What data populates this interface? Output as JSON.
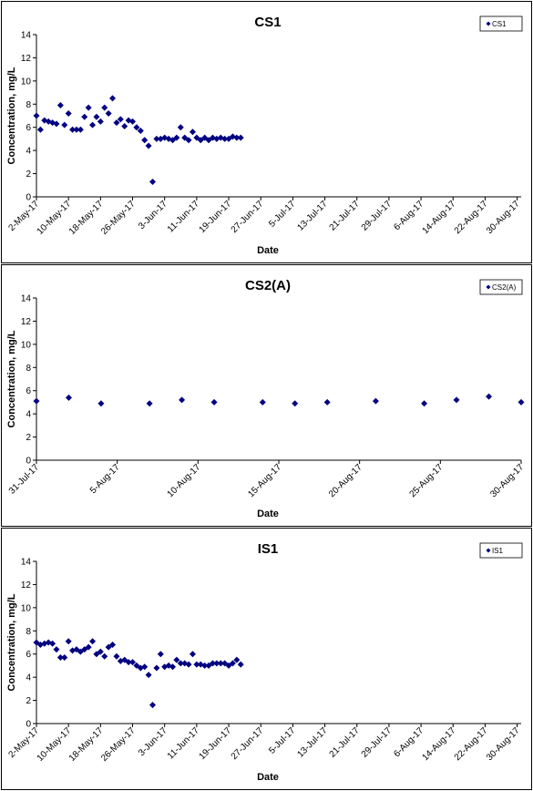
{
  "chart_data": [
    {
      "type": "scatter",
      "title": "CS1",
      "xlabel": "Date",
      "ylabel": "Concentration, mg/L",
      "ylim": [
        0,
        14
      ],
      "yticks": [
        "0",
        "2",
        "4",
        "6",
        "8",
        "10",
        "12",
        "14"
      ],
      "xlim": [
        "2017-05-02",
        "2017-08-31"
      ],
      "xticks": [
        "2-May-17",
        "10-May-17",
        "18-May-17",
        "26-May-17",
        "3-Jun-17",
        "11-Jun-17",
        "19-Jun-17",
        "27-Jun-17",
        "5-Jul-17",
        "13-Jul-17",
        "21-Jul-17",
        "29-Jul-17",
        "6-Aug-17",
        "14-Aug-17",
        "22-Aug-17",
        "30-Aug-17"
      ],
      "legend": "top-right",
      "series": [
        {
          "name": "CS1",
          "color": "#000080",
          "points": [
            [
              "2017-05-02",
              7.0
            ],
            [
              "2017-05-03",
              5.8
            ],
            [
              "2017-05-04",
              6.6
            ],
            [
              "2017-05-05",
              6.5
            ],
            [
              "2017-05-06",
              6.4
            ],
            [
              "2017-05-07",
              6.3
            ],
            [
              "2017-05-08",
              7.9
            ],
            [
              "2017-05-09",
              6.2
            ],
            [
              "2017-05-10",
              7.2
            ],
            [
              "2017-05-11",
              5.8
            ],
            [
              "2017-05-12",
              5.8
            ],
            [
              "2017-05-13",
              5.8
            ],
            [
              "2017-05-14",
              6.9
            ],
            [
              "2017-05-15",
              7.7
            ],
            [
              "2017-05-16",
              6.2
            ],
            [
              "2017-05-17",
              6.9
            ],
            [
              "2017-05-18",
              6.5
            ],
            [
              "2017-05-19",
              7.7
            ],
            [
              "2017-05-20",
              7.2
            ],
            [
              "2017-05-21",
              8.5
            ],
            [
              "2017-05-22",
              6.4
            ],
            [
              "2017-05-23",
              6.7
            ],
            [
              "2017-05-24",
              6.1
            ],
            [
              "2017-05-25",
              6.6
            ],
            [
              "2017-05-26",
              6.5
            ],
            [
              "2017-05-27",
              6.0
            ],
            [
              "2017-05-28",
              5.7
            ],
            [
              "2017-05-29",
              4.9
            ],
            [
              "2017-05-30",
              4.4
            ],
            [
              "2017-05-31",
              1.3
            ],
            [
              "2017-06-01",
              5.0
            ],
            [
              "2017-06-02",
              5.0
            ],
            [
              "2017-06-03",
              5.1
            ],
            [
              "2017-06-04",
              5.0
            ],
            [
              "2017-06-05",
              4.9
            ],
            [
              "2017-06-06",
              5.1
            ],
            [
              "2017-06-07",
              6.0
            ],
            [
              "2017-06-08",
              5.1
            ],
            [
              "2017-06-09",
              4.9
            ],
            [
              "2017-06-10",
              5.6
            ],
            [
              "2017-06-11",
              5.1
            ],
            [
              "2017-06-12",
              4.9
            ],
            [
              "2017-06-13",
              5.1
            ],
            [
              "2017-06-14",
              4.9
            ],
            [
              "2017-06-15",
              5.1
            ],
            [
              "2017-06-16",
              5.0
            ],
            [
              "2017-06-17",
              5.1
            ],
            [
              "2017-06-18",
              5.0
            ],
            [
              "2017-06-19",
              5.0
            ],
            [
              "2017-06-20",
              5.2
            ],
            [
              "2017-06-21",
              5.1
            ],
            [
              "2017-06-22",
              5.1
            ]
          ]
        }
      ]
    },
    {
      "type": "scatter",
      "title": "CS2(A)",
      "xlabel": "Date",
      "ylabel": "Concentration, mg/L",
      "ylim": [
        0,
        14
      ],
      "yticks": [
        "0",
        "2",
        "4",
        "6",
        "8",
        "10",
        "12",
        "14"
      ],
      "xlim": [
        "2017-07-31",
        "2017-08-30"
      ],
      "xticks": [
        "31-Jul-17",
        "5-Aug-17",
        "10-Aug-17",
        "15-Aug-17",
        "20-Aug-17",
        "25-Aug-17",
        "30-Aug-17"
      ],
      "legend": "top-right",
      "series": [
        {
          "name": "CS2(A)",
          "color": "#000080",
          "points": [
            [
              "2017-07-31",
              5.1
            ],
            [
              "2017-08-02",
              5.4
            ],
            [
              "2017-08-04",
              4.9
            ],
            [
              "2017-08-07",
              4.9
            ],
            [
              "2017-08-09",
              5.2
            ],
            [
              "2017-08-11",
              5.0
            ],
            [
              "2017-08-14",
              5.0
            ],
            [
              "2017-08-16",
              4.9
            ],
            [
              "2017-08-18",
              5.0
            ],
            [
              "2017-08-21",
              5.1
            ],
            [
              "2017-08-24",
              4.9
            ],
            [
              "2017-08-26",
              5.2
            ],
            [
              "2017-08-28",
              5.5
            ],
            [
              "2017-08-30",
              5.0
            ]
          ]
        }
      ]
    },
    {
      "type": "scatter",
      "title": "IS1",
      "xlabel": "Date",
      "ylabel": "Concentration, mg/L",
      "ylim": [
        0,
        14
      ],
      "yticks": [
        "0",
        "2",
        "4",
        "6",
        "8",
        "10",
        "12",
        "14"
      ],
      "xlim": [
        "2017-05-02",
        "2017-08-31"
      ],
      "xticks": [
        "2-May-17",
        "10-May-17",
        "18-May-17",
        "26-May-17",
        "3-Jun-17",
        "11-Jun-17",
        "19-Jun-17",
        "27-Jun-17",
        "5-Jul-17",
        "13-Jul-17",
        "21-Jul-17",
        "29-Jul-17",
        "6-Aug-17",
        "14-Aug-17",
        "22-Aug-17",
        "30-Aug-17"
      ],
      "legend": "top-right",
      "series": [
        {
          "name": "IS1",
          "color": "#000080",
          "points": [
            [
              "2017-05-02",
              7.0
            ],
            [
              "2017-05-03",
              6.8
            ],
            [
              "2017-05-04",
              6.9
            ],
            [
              "2017-05-05",
              7.0
            ],
            [
              "2017-05-06",
              6.9
            ],
            [
              "2017-05-07",
              6.4
            ],
            [
              "2017-05-08",
              5.7
            ],
            [
              "2017-05-09",
              5.7
            ],
            [
              "2017-05-10",
              7.1
            ],
            [
              "2017-05-11",
              6.3
            ],
            [
              "2017-05-12",
              6.4
            ],
            [
              "2017-05-13",
              6.2
            ],
            [
              "2017-05-14",
              6.4
            ],
            [
              "2017-05-15",
              6.6
            ],
            [
              "2017-05-16",
              7.1
            ],
            [
              "2017-05-17",
              6.0
            ],
            [
              "2017-05-18",
              6.2
            ],
            [
              "2017-05-19",
              5.8
            ],
            [
              "2017-05-20",
              6.6
            ],
            [
              "2017-05-21",
              6.8
            ],
            [
              "2017-05-22",
              5.8
            ],
            [
              "2017-05-23",
              5.4
            ],
            [
              "2017-05-24",
              5.5
            ],
            [
              "2017-05-25",
              5.3
            ],
            [
              "2017-05-26",
              5.3
            ],
            [
              "2017-05-27",
              5.0
            ],
            [
              "2017-05-28",
              4.8
            ],
            [
              "2017-05-29",
              4.9
            ],
            [
              "2017-05-30",
              4.2
            ],
            [
              "2017-05-31",
              1.6
            ],
            [
              "2017-06-01",
              4.8
            ],
            [
              "2017-06-02",
              6.0
            ],
            [
              "2017-06-03",
              4.9
            ],
            [
              "2017-06-04",
              5.0
            ],
            [
              "2017-06-05",
              4.9
            ],
            [
              "2017-06-06",
              5.5
            ],
            [
              "2017-06-07",
              5.2
            ],
            [
              "2017-06-08",
              5.2
            ],
            [
              "2017-06-09",
              5.1
            ],
            [
              "2017-06-10",
              6.0
            ],
            [
              "2017-06-11",
              5.1
            ],
            [
              "2017-06-12",
              5.1
            ],
            [
              "2017-06-13",
              5.0
            ],
            [
              "2017-06-14",
              5.0
            ],
            [
              "2017-06-15",
              5.2
            ],
            [
              "2017-06-16",
              5.2
            ],
            [
              "2017-06-17",
              5.2
            ],
            [
              "2017-06-18",
              5.2
            ],
            [
              "2017-06-19",
              5.0
            ],
            [
              "2017-06-20",
              5.2
            ],
            [
              "2017-06-21",
              5.5
            ],
            [
              "2017-06-22",
              5.1
            ]
          ]
        }
      ]
    }
  ]
}
